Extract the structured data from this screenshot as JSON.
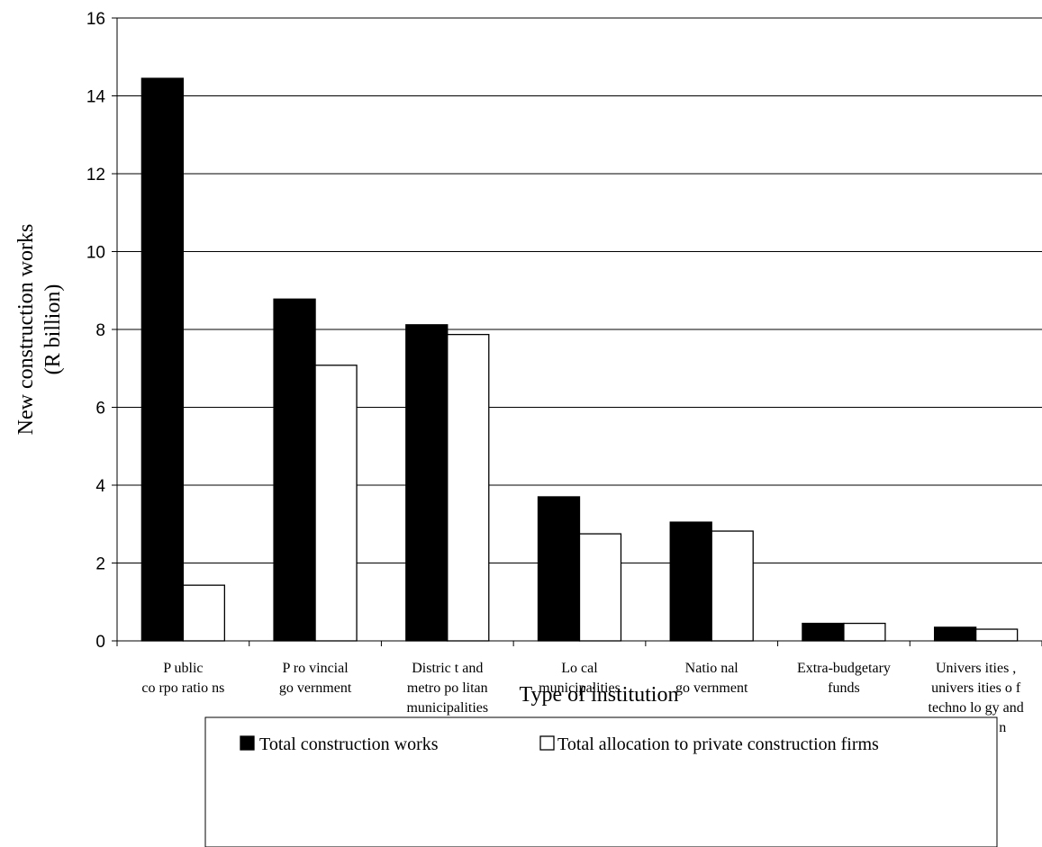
{
  "chart_data": {
    "type": "bar",
    "title": "",
    "xlabel": "Type of institution",
    "ylabel": [
      "New construction works",
      "(R billion)"
    ],
    "ylim": [
      0,
      16
    ],
    "yticks": [
      "0",
      "2",
      "4",
      "6",
      "8",
      "10",
      "12",
      "14",
      "16"
    ],
    "grid": "horizontal",
    "legend_position": "bottom",
    "categories": [
      [
        "P ublic",
        "co rpo ratio ns"
      ],
      [
        "P ro vincial",
        "go vernment"
      ],
      [
        "Distric t and",
        "metro po litan",
        "municipalities"
      ],
      [
        "Lo cal",
        "municipalities"
      ],
      [
        "Natio nal",
        "go vernment"
      ],
      [
        "Extra-budgetary",
        "funds"
      ],
      [
        "Univers ities ,",
        "univers ities o f",
        "techno lo gy and",
        "techniko n"
      ]
    ],
    "series": [
      {
        "name": "Total construction works",
        "color": "#000000",
        "values": [
          14.45,
          8.78,
          8.12,
          3.7,
          3.05,
          0.45,
          0.35
        ]
      },
      {
        "name": "Total allocation to private construction firms",
        "color": "#ffffff",
        "values": [
          1.43,
          7.08,
          7.87,
          2.75,
          2.82,
          0.45,
          0.3
        ]
      }
    ]
  }
}
